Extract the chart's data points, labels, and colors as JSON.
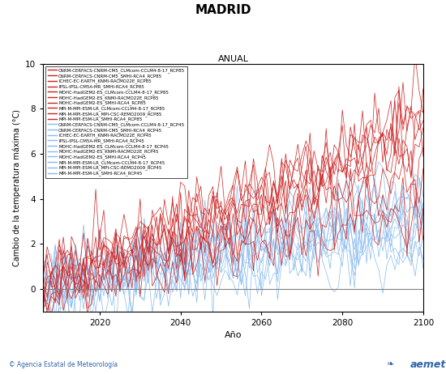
{
  "title": "MADRID",
  "subtitle": "ANUAL",
  "xlabel": "Año",
  "ylabel": "Cambio de la temperatura máxima (°C)",
  "xlim": [
    2006,
    2100
  ],
  "ylim": [
    -1,
    10
  ],
  "yticks": [
    0,
    2,
    4,
    6,
    8,
    10
  ],
  "xticks": [
    2020,
    2040,
    2060,
    2080,
    2100
  ],
  "rcp85_color": "#CC2222",
  "rcp45_color": "#88BBEE",
  "rcp85_labels": [
    "CNRM-CERFACS-CNRM-CM5_CLMcom-CCLM4-8-17_RCP85",
    "CNRM-CERFACS-CNRM-CM5_SMHI-RCA4_RCP85",
    "ICHEC-EC-EARTH_KNMI-RACMO22E_RCP85",
    "IPSL-IPSL-CM5A-MR_SMHI-RCA4_RCP85",
    "MOHC-HadGEM2-ES_CLMcom-CCLM4-8-17_RCP85",
    "MOHC-HadGEM2-ES_KNMI-RACMO22E_RCP85",
    "MOHC-HadGEM2-ES_SMHI-RCA4_RCP85",
    "MPI-M-MPI-ESM-LR_CLMcom-CCLM4-8-17_RCP85",
    "MPI-M-MPI-ESM-LR_MPI-CSC-REMO2009_RCP85",
    "MPI-M-MPI-ESM-LR_SMHI-RCA4_RCP85"
  ],
  "rcp45_labels": [
    "CNRM-CERFACS-CNRM-CM5_CLMcom-CCLM4-8-17_RCP45",
    "CNRM-CERFACS-CNRM-CM5_SMHI-RCA4_RCP45",
    "ICHEC-EC-EARTH_KNMI-RACMO22E_RCP45",
    "IPSL-IPSL-CM5A-MR_SMHI-RCA4_RCP45",
    "MOHC-HadGEM2-ES_CLMcom-CCLM4-8-17_RCP45",
    "MOHC-HadGEM2-ES_KNMI-RACMO22E_RCP45",
    "MOHC-HadGEM2-ES_SMHI-RCA4_RCP45",
    "MPI-M-MPI-ESM-LR_CLMcom-CCLM4-8-17_RCP45",
    "MPI-M-MPI-ESM-LR_MPI-CSC-REMO2009_RCP45",
    "MPI-M-MPI-ESM-LR_SMHI-RCA4_RCP45"
  ],
  "start_year": 2006,
  "end_year": 2100,
  "footer_left": "© Agencia Estatal de Meteorología",
  "footer_right": "aemet",
  "footer_color": "#3366AA",
  "fig_width": 5.5,
  "fig_height": 4.62,
  "dpi": 100
}
